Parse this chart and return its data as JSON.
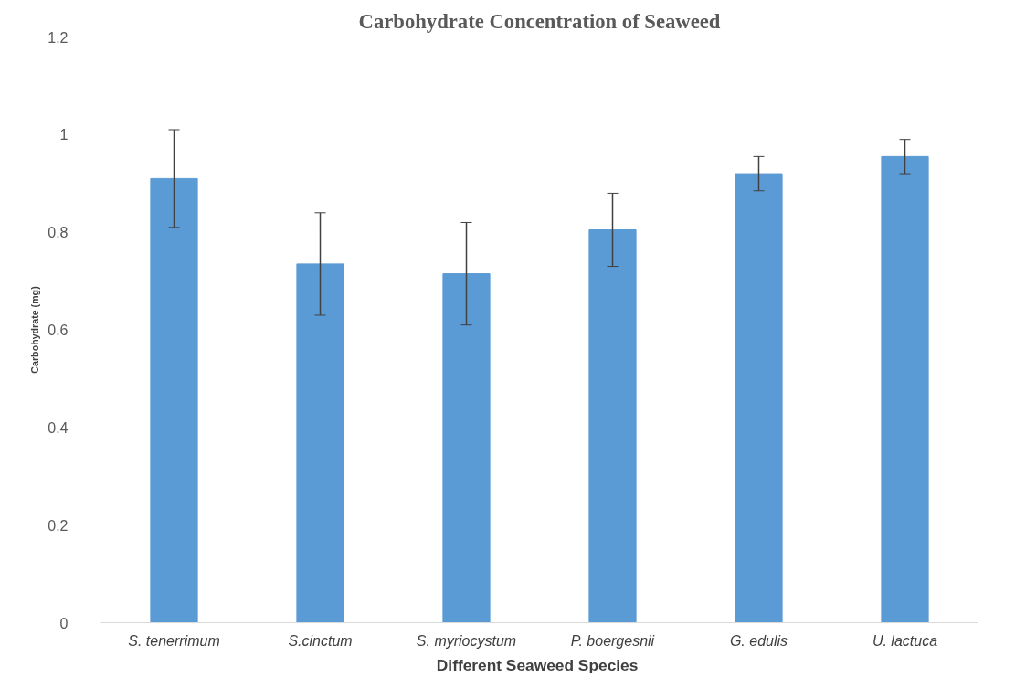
{
  "chart_data": {
    "type": "bar",
    "title": "Carbohydrate Concentration of Seaweed",
    "xlabel": "Different  Seaweed Species",
    "ylabel": "Carbohydrate (mg)",
    "categories": [
      "S. tenerrimum",
      "S.cinctum",
      "S. myriocystum",
      "P. boergesnii",
      "G. edulis",
      "U. lactuca"
    ],
    "values": [
      0.91,
      0.735,
      0.715,
      0.805,
      0.92,
      0.955
    ],
    "errors": [
      0.1,
      0.105,
      0.105,
      0.075,
      0.035,
      0.035
    ],
    "color": "#5b9bd5",
    "ylim": [
      0,
      1.2
    ],
    "yticks": [
      0,
      0.2,
      0.4,
      0.6,
      0.8,
      1,
      1.2
    ],
    "grid": false
  }
}
